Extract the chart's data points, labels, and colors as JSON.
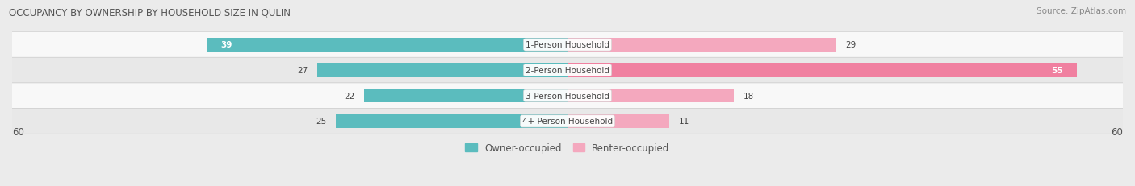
{
  "title": "OCCUPANCY BY OWNERSHIP BY HOUSEHOLD SIZE IN QULIN",
  "source": "Source: ZipAtlas.com",
  "categories": [
    "1-Person Household",
    "2-Person Household",
    "3-Person Household",
    "4+ Person Household"
  ],
  "owner_values": [
    39,
    27,
    22,
    25
  ],
  "renter_values": [
    29,
    55,
    18,
    11
  ],
  "owner_color": "#5bbcbe",
  "renter_color": "#f080a0",
  "renter_color_light": "#f4a8be",
  "axis_max": 60,
  "background_color": "#ebebeb",
  "row_bg_even": "#f8f8f8",
  "row_bg_odd": "#e8e8e8",
  "label_color": "#555555",
  "title_color": "#444444",
  "legend_owner": "Owner-occupied",
  "legend_renter": "Renter-occupied",
  "owner_label_white": [
    true,
    false,
    false,
    false
  ],
  "renter_label_white": [
    false,
    true,
    false,
    false
  ]
}
